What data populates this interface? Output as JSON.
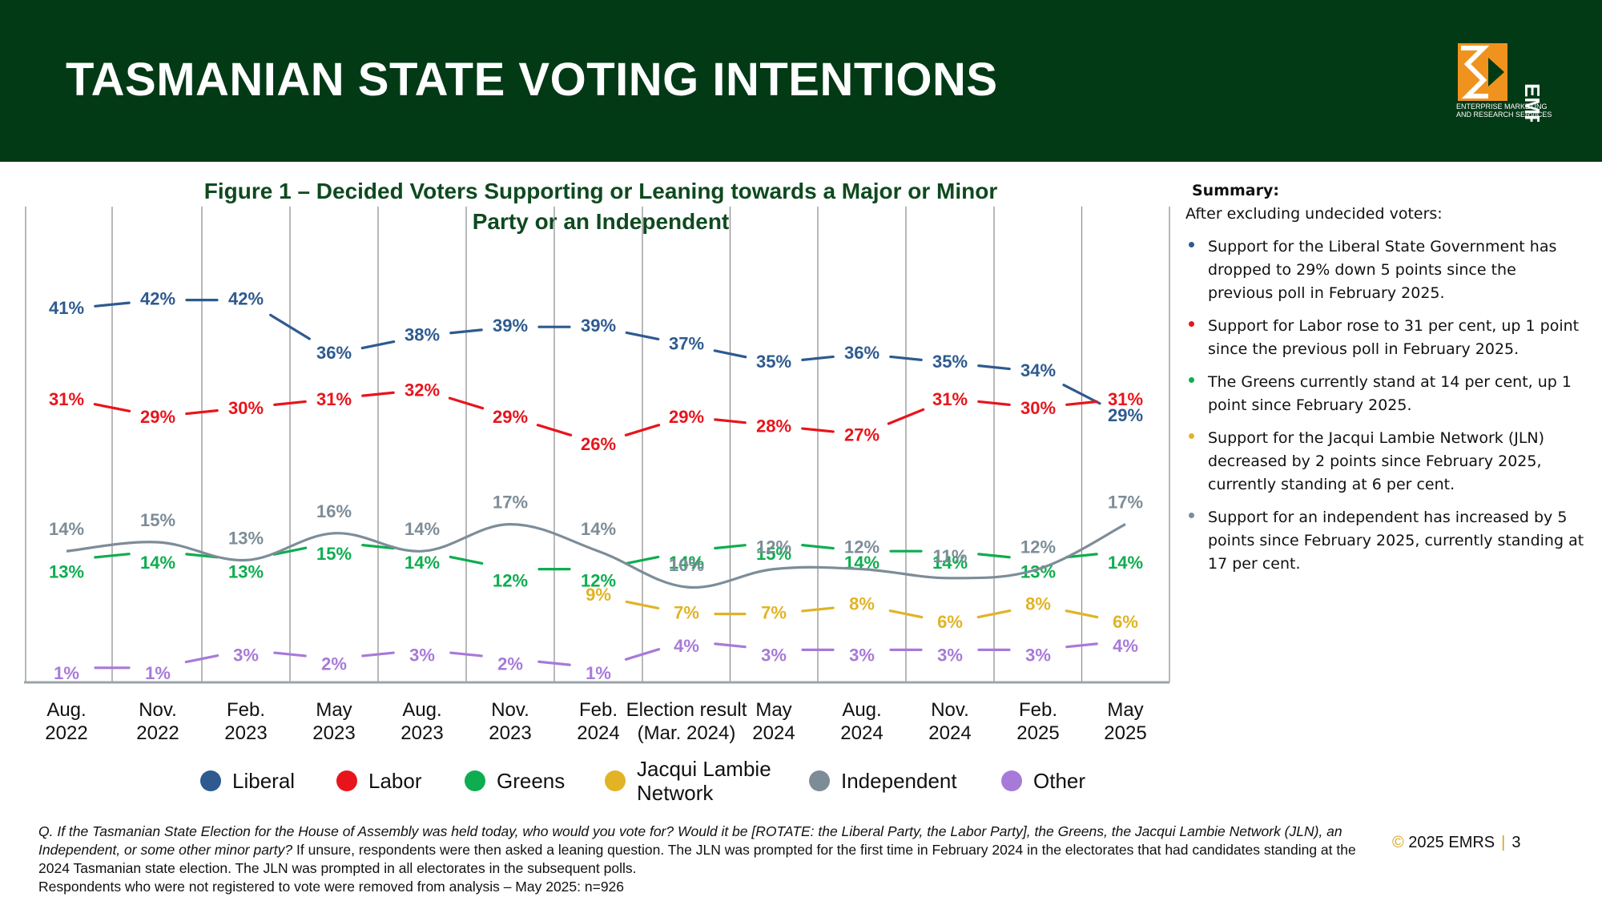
{
  "header": {
    "title": "TASMANIAN STATE VOTING INTENTIONS"
  },
  "logo": {
    "name": "EMRS",
    "line1": "ENTERPRISE MARKETING",
    "line2": "AND RESEARCH SERVICES",
    "icon": "emrs-logo-icon",
    "colors": {
      "orange": "#f0931e",
      "green": "#0b3a17"
    }
  },
  "figure": {
    "title_line1": "Figure 1 – Decided Voters Supporting or Leaning towards a Major or Minor",
    "title_line2": "Party or an Independent"
  },
  "chart_data": {
    "type": "line",
    "title": "Figure 1 – Decided Voters Supporting or Leaning towards a Major or Minor Party or an Independent",
    "categories": [
      [
        "Aug.",
        "2022"
      ],
      [
        "Nov.",
        "2022"
      ],
      [
        "Feb.",
        "2023"
      ],
      [
        "May",
        "2023"
      ],
      [
        "Aug.",
        "2023"
      ],
      [
        "Nov.",
        "2023"
      ],
      [
        "Feb.",
        "2024"
      ],
      [
        "Election result",
        "(Mar. 2024)"
      ],
      [
        "May",
        "2024"
      ],
      [
        "Aug.",
        "2024"
      ],
      [
        "Nov.",
        "2024"
      ],
      [
        "Feb.",
        "2025"
      ],
      [
        "May",
        "2025"
      ]
    ],
    "ylim": [
      0,
      45
    ],
    "grid": "vertical",
    "legend_position": "bottom",
    "series": [
      {
        "name": "Liberal",
        "color": "#2e5a8f",
        "dash": true,
        "values": [
          41,
          42,
          42,
          36,
          38,
          39,
          39,
          37,
          35,
          36,
          35,
          34,
          29
        ],
        "labels": [
          "41%",
          "42%",
          "42%",
          "36%",
          "38%",
          "39%",
          "39%",
          "37%",
          "35%",
          "36%",
          "35%",
          "34%",
          "29%"
        ]
      },
      {
        "name": "Labor",
        "color": "#e8141c",
        "dash": true,
        "values": [
          31,
          29,
          30,
          31,
          32,
          29,
          26,
          29,
          28,
          27,
          31,
          30,
          31
        ],
        "labels": [
          "31%",
          "29%",
          "30%",
          "31%",
          "32%",
          "29%",
          "26%",
          "29%",
          "28%",
          "27%",
          "31%",
          "30%",
          "31%"
        ]
      },
      {
        "name": "Greens",
        "color": "#0ead4f",
        "dash": true,
        "values": [
          13,
          14,
          13,
          15,
          14,
          12,
          12,
          14,
          15,
          14,
          14,
          13,
          14
        ],
        "labels": [
          "13%",
          "14%",
          "13%",
          "15%",
          "14%",
          "12%",
          "12%",
          "14%",
          "15%",
          "14%",
          "14%",
          "13%",
          "14%"
        ]
      },
      {
        "name": "Jacqui Lambie Network",
        "legend_label": [
          "Jacqui Lambie",
          "Network"
        ],
        "color": "#e1b325",
        "dash": true,
        "values": [
          null,
          null,
          null,
          null,
          null,
          null,
          9,
          7,
          7,
          8,
          6,
          8,
          6
        ],
        "labels": [
          null,
          null,
          null,
          null,
          null,
          null,
          "9%",
          "7%",
          "7%",
          "8%",
          "6%",
          "8%",
          "6%"
        ]
      },
      {
        "name": "Independent",
        "color": "#7d8d98",
        "dash": false,
        "values": [
          14,
          15,
          13,
          16,
          14,
          17,
          14,
          10,
          12,
          12,
          11,
          12,
          17
        ],
        "labels": [
          "14%",
          "15%",
          "13%",
          "16%",
          "14%",
          "17%",
          "14%",
          "10%",
          "12%",
          "12%",
          "11%",
          "12%",
          "17%"
        ]
      },
      {
        "name": "Other",
        "color": "#a77ad9",
        "dash": true,
        "values": [
          1,
          1,
          3,
          2,
          3,
          2,
          1,
          4,
          3,
          3,
          3,
          3,
          4
        ],
        "labels": [
          "1%",
          "1%",
          "3%",
          "2%",
          "3%",
          "2%",
          "1%",
          "4%",
          "3%",
          "3%",
          "3%",
          "3%",
          "4%"
        ]
      }
    ]
  },
  "summary": {
    "heading": "Summary:",
    "intro": "After excluding undecided voters:",
    "bullets": [
      {
        "color": "#2e5a8f",
        "text": "Support for the Liberal State Government has dropped to 29% down 5 points since the previous poll in February 2025."
      },
      {
        "color": "#e8141c",
        "text": "Support for Labor rose to 31 per cent, up 1 point since the previous poll in February 2025."
      },
      {
        "color": "#0ead4f",
        "text": "The Greens currently stand at 14 per cent, up 1 point since February 2025."
      },
      {
        "color": "#e1b325",
        "text": "Support for the Jacqui Lambie Network (JLN) decreased by 2 points since February 2025, currently standing at 6 per cent."
      },
      {
        "color": "#7d8d98",
        "text": "Support for an independent has increased by 5 points since February 2025, currently standing at 17 per cent."
      }
    ]
  },
  "footnote": {
    "question": "Q. If the Tasmanian State Election for the House of Assembly was held today, who would you vote for? Would it be [ROTATE: the Liberal Party, the Labor Party], the Greens, the Jacqui Lambie Network (JLN), an Independent, or some other minor party?",
    "note": " If unsure, respondents were then asked a leaning question. The JLN was prompted for the first time in February 2024 in the electorates that had candidates standing at the 2024 Tasmanian state election. The JLN was prompted in all electorates in the subsequent polls.",
    "note2": "Respondents who were not registered to vote were removed from analysis – May 2025: n=926"
  },
  "footer": {
    "copyright_symbol": "©",
    "copyright": " 2025 EMRS",
    "divider": "|",
    "page_number": "3"
  }
}
